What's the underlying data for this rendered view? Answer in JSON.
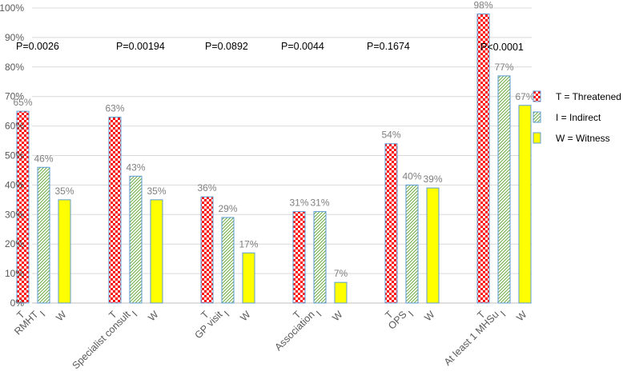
{
  "chart_data": {
    "type": "bar",
    "title": "",
    "xlabel": "",
    "ylabel": "",
    "ylim": [
      0,
      100
    ],
    "y_ticks": [
      "0%",
      "10%",
      "20%",
      "30%",
      "40%",
      "50%",
      "60%",
      "70%",
      "80%",
      "90%",
      "100%"
    ],
    "categories": [
      "RMHT",
      "Specialist consult",
      "GP  visit",
      "Association",
      "OPS",
      "At least 1 MHSu"
    ],
    "bar_tick_labels": [
      "T",
      "I",
      "W"
    ],
    "series": [
      {
        "name": "T = Threatened",
        "key": "T",
        "values": [
          65,
          63,
          36,
          31,
          54,
          98
        ],
        "fill": "#ff0000",
        "pattern": "checker"
      },
      {
        "name": "I = Indirect",
        "key": "I",
        "values": [
          46,
          43,
          29,
          31,
          40,
          77
        ],
        "fill": "#70ad47",
        "pattern": "diagonal"
      },
      {
        "name": "W = Witness",
        "key": "W",
        "values": [
          35,
          35,
          17,
          7,
          39,
          67
        ],
        "fill": "#ffff00",
        "pattern": "solid"
      }
    ],
    "data_labels": [
      [
        "65%",
        "46%",
        "35%"
      ],
      [
        "63%",
        "43%",
        "35%"
      ],
      [
        "36%",
        "29%",
        "17%"
      ],
      [
        "31%",
        "31%",
        "7%"
      ],
      [
        "54%",
        "40%",
        "39%"
      ],
      [
        "98%",
        "77%",
        "67%"
      ]
    ],
    "p_values": [
      "P=0.0026",
      "P=0.00194",
      "P=0.0892",
      "P=0.0044",
      "P=0.1674",
      "P<0.0001"
    ],
    "legend_position": "right",
    "grid": true,
    "colors": {
      "grid": "#d9d9d9",
      "bar_edge": "#5b9bd5",
      "axis_text": "#595959",
      "label_text": "#7f7f7f"
    }
  }
}
